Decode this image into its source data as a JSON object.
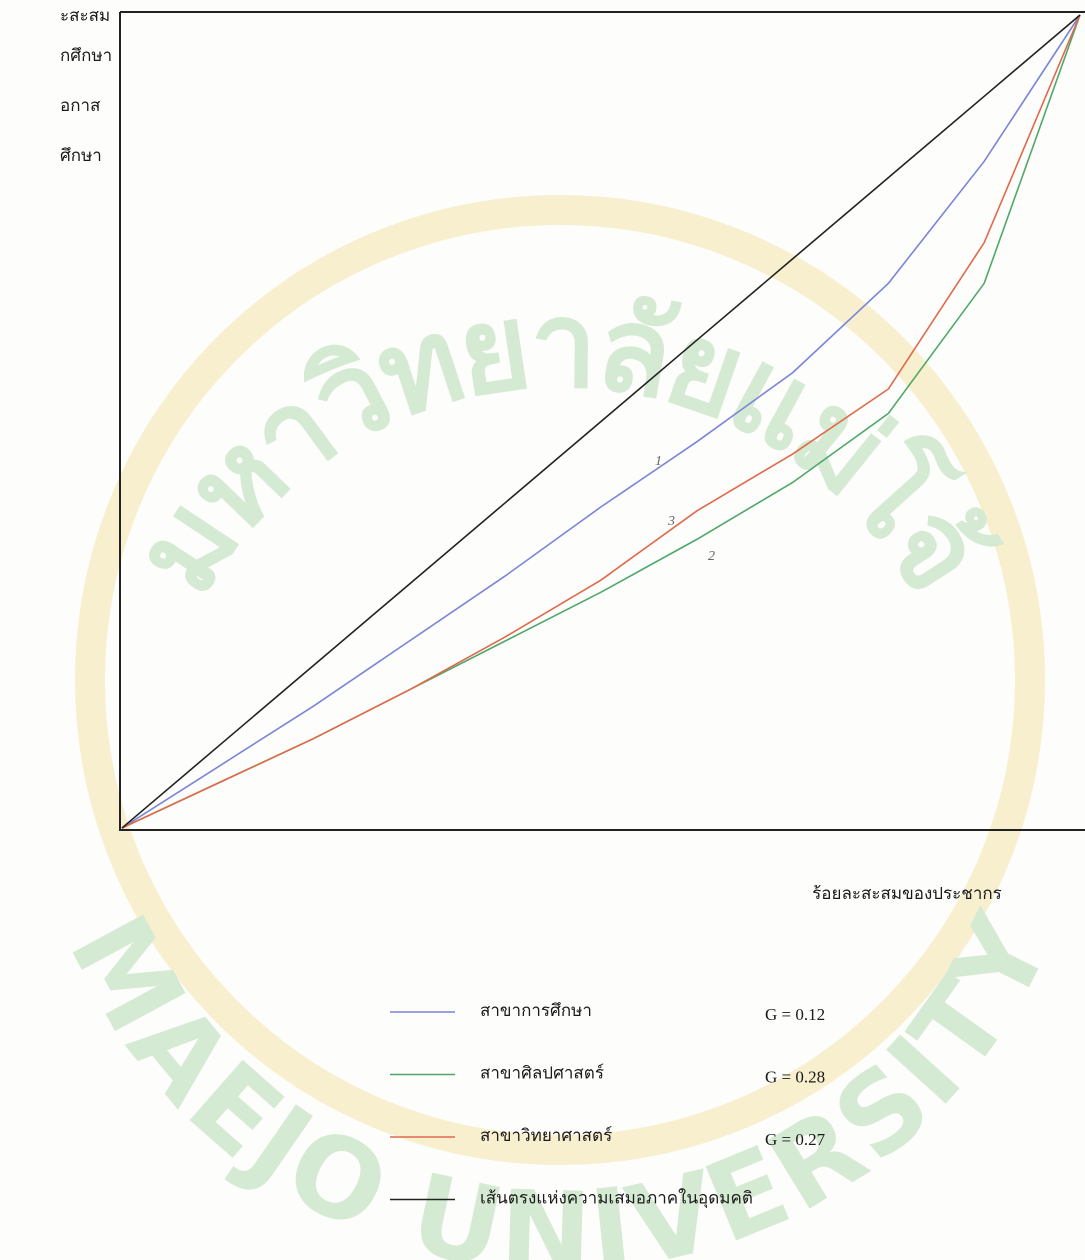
{
  "chart_data": {
    "type": "line",
    "side_labels": [
      "ะสะสม",
      "กศึกษา",
      "อกาส",
      "ศึกษา"
    ],
    "x_label": "ร้อยละสะสมของประชากร",
    "annotations": [
      "1",
      "3",
      "2"
    ],
    "watermark": {
      "top": "มหาวิทยาลัยแม่โจ้",
      "bottom": "MAEJO UNIVERSITY"
    },
    "x": [
      0,
      10,
      20,
      30,
      40,
      50,
      60,
      70,
      80,
      90,
      100
    ],
    "xlim": [
      0,
      100
    ],
    "ylim": [
      0,
      100
    ],
    "series": [
      {
        "name": "สาขาการศึกษา",
        "gini_label": "G = 0.12",
        "color": "#7a84d8",
        "values": [
          0,
          7.5,
          15,
          23,
          31,
          39.5,
          47.5,
          56,
          67,
          82,
          100
        ]
      },
      {
        "name": "สาขาศิลปศาสตร์",
        "gini_label": "G = 0.28",
        "color": "#4fa86b",
        "values": [
          0,
          5.5,
          11,
          17,
          23,
          29,
          35.5,
          42.5,
          51,
          67,
          100
        ]
      },
      {
        "name": "สาขาวิทยาศาสตร์",
        "gini_label": "G = 0.27",
        "color": "#e0694a",
        "values": [
          0,
          5.5,
          11,
          17,
          23.5,
          30.5,
          39,
          46,
          54,
          72,
          100
        ]
      },
      {
        "name": "เส้นตรงแห่งความเสมอภาคในอุดมคติ",
        "color": "#222222",
        "values": [
          0,
          10,
          20,
          30,
          40,
          50,
          60,
          70,
          80,
          90,
          100
        ]
      }
    ]
  }
}
